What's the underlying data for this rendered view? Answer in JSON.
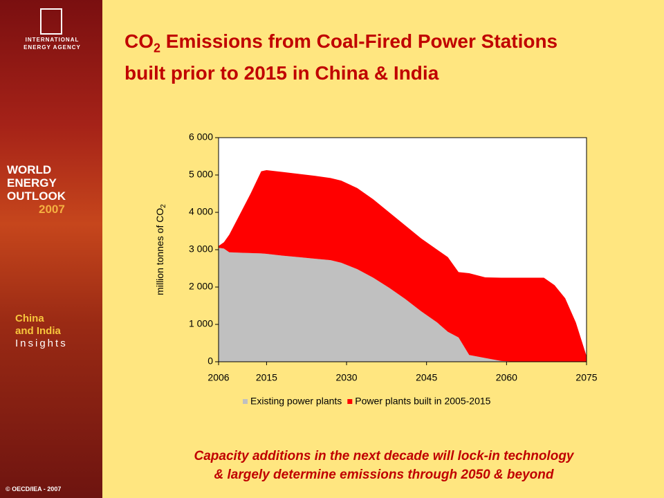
{
  "sidebar": {
    "agency": "INTERNATIONAL ENERGY AGENCY",
    "weo": [
      "WORLD",
      "ENERGY",
      "OUTLOOK",
      "2007"
    ],
    "insights": [
      "China",
      "and India",
      "Insights"
    ],
    "copyright": "© OECD/IEA - 2007"
  },
  "slide": {
    "title_a": "CO",
    "title_sub": "2",
    "title_b": " Emissions from Coal-Fired Power Stations",
    "title_line2": "built prior to 2015 in China & India",
    "caption": [
      "Capacity additions in the next decade will lock-in technology",
      "& largely determine emissions through 2050 & beyond"
    ]
  },
  "chart_data": {
    "type": "stacked_area",
    "ylabel": "million tonnes of CO",
    "ylabel_sub": "2",
    "x": [
      2006,
      2007,
      2008,
      2010,
      2012,
      2014,
      2015,
      2018,
      2021,
      2024,
      2027,
      2029,
      2032,
      2035,
      2038,
      2041,
      2044,
      2047,
      2049,
      2051,
      2053,
      2056,
      2059,
      2062,
      2065,
      2067,
      2069,
      2071,
      2073,
      2075
    ],
    "series": [
      {
        "name": "Existing power plants",
        "color": "#c0c0c0",
        "values": [
          3050,
          3030,
          2930,
          2920,
          2910,
          2900,
          2890,
          2840,
          2800,
          2760,
          2720,
          2650,
          2480,
          2250,
          1980,
          1680,
          1350,
          1050,
          800,
          650,
          180,
          100,
          20,
          0,
          0,
          0,
          0,
          0,
          0,
          0
        ]
      },
      {
        "name": "Power plants built in 2005-2015",
        "color": "#ff0000",
        "values": [
          50,
          170,
          470,
          1030,
          1590,
          2200,
          2240,
          2240,
          2230,
          2220,
          2200,
          2200,
          2170,
          2100,
          2020,
          1970,
          1950,
          1950,
          2000,
          1750,
          2190,
          2160,
          2230,
          2250,
          2250,
          2250,
          2050,
          1700,
          1050,
          150
        ]
      }
    ],
    "xlim": [
      2006,
      2075
    ],
    "xticks": [
      2006,
      2015,
      2030,
      2045,
      2060,
      2075
    ],
    "ylim": [
      0,
      6000
    ],
    "yticks": [
      {
        "value": 0,
        "label": "0"
      },
      {
        "value": 1000,
        "label": "1 000"
      },
      {
        "value": 2000,
        "label": "2 000"
      },
      {
        "value": 3000,
        "label": "3 000"
      },
      {
        "value": 4000,
        "label": "4 000"
      },
      {
        "value": 5000,
        "label": "5 000"
      },
      {
        "value": 6000,
        "label": "6 000"
      }
    ],
    "legend": "bottom"
  }
}
